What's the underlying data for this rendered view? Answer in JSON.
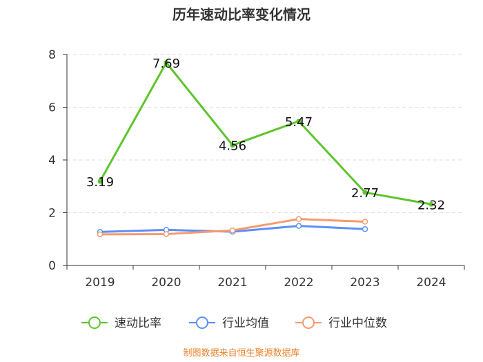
{
  "chart_data": {
    "type": "line",
    "title": "历年速动比率变化情况",
    "categories": [
      "2019",
      "2020",
      "2021",
      "2022",
      "2023",
      "2024"
    ],
    "ylim": [
      0,
      8
    ],
    "yticks": [
      0,
      2,
      4,
      6,
      8
    ],
    "xlabel": "",
    "ylabel": "",
    "grid": "horizontal-dashed",
    "legend_position": "bottom",
    "series": [
      {
        "name": "速动比率",
        "color": "#5ec42b",
        "values": [
          3.19,
          7.69,
          4.56,
          5.47,
          2.77,
          2.32
        ],
        "labels": [
          "3.19",
          "7.69",
          "4.56",
          "5.47",
          "2.77",
          "2.32"
        ],
        "show_labels": true
      },
      {
        "name": "行业均值",
        "color": "#5b8ff9",
        "values": [
          1.27,
          1.35,
          1.28,
          1.5,
          1.38,
          null
        ],
        "show_labels": false
      },
      {
        "name": "行业中位数",
        "color": "#f79a6e",
        "values": [
          1.18,
          1.19,
          1.33,
          1.76,
          1.66,
          null
        ],
        "show_labels": false
      }
    ]
  },
  "source": {
    "text": "制图数据来自恒生聚源数据库",
    "color": "#e8822a"
  }
}
